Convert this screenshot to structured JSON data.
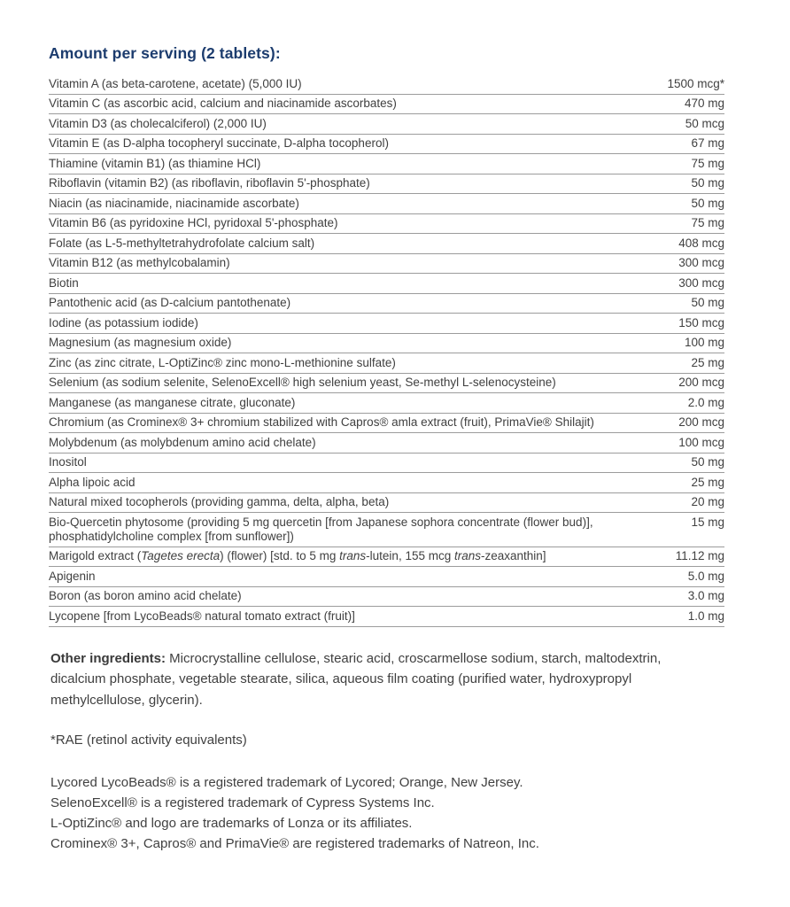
{
  "page": {
    "title": "Amount per serving (2 tablets):"
  },
  "colors": {
    "title_blue": "#1c3c6e",
    "body_text": "#404040",
    "rule_gray": "#9c9c9c",
    "background": "#ffffff"
  },
  "supplement_table": {
    "columns": [
      "ingredient",
      "amount"
    ],
    "rows": [
      {
        "name": "Vitamin A (as beta-carotene, acetate) (5,000 IU)",
        "amount": "1500 mcg*"
      },
      {
        "name": "Vitamin C (as ascorbic acid, calcium and niacinamide ascorbates)",
        "amount": "470 mg"
      },
      {
        "name": "Vitamin D3 (as cholecalciferol) (2,000 IU)",
        "amount": "50 mcg"
      },
      {
        "name": "Vitamin E (as D-alpha tocopheryl succinate, D-alpha tocopherol)",
        "amount": "67 mg"
      },
      {
        "name": "Thiamine (vitamin B1) (as thiamine HCl)",
        "amount": "75 mg"
      },
      {
        "name": "Riboflavin (vitamin B2) (as riboflavin, riboflavin 5'-phosphate)",
        "amount": "50 mg"
      },
      {
        "name": "Niacin (as niacinamide, niacinamide ascorbate)",
        "amount": "50 mg"
      },
      {
        "name": "Vitamin B6 (as pyridoxine HCl, pyridoxal 5'-phosphate)",
        "amount": "75 mg"
      },
      {
        "name": "Folate (as L-5-methyltetrahydrofolate calcium salt)",
        "amount": "408 mcg"
      },
      {
        "name": "Vitamin B12 (as methylcobalamin)",
        "amount": "300 mcg"
      },
      {
        "name": "Biotin",
        "amount": "300 mcg"
      },
      {
        "name": "Pantothenic acid (as D-calcium pantothenate)",
        "amount": "50 mg"
      },
      {
        "name": "Iodine (as potassium iodide)",
        "amount": "150 mcg"
      },
      {
        "name": "Magnesium (as magnesium oxide)",
        "amount": "100 mg"
      },
      {
        "name": "Zinc (as zinc citrate, L-OptiZinc® zinc mono-L-methionine sulfate)",
        "amount": "25 mg"
      },
      {
        "name": "Selenium (as sodium selenite, SelenoExcell® high selenium yeast, Se-methyl L-selenocysteine)",
        "amount": "200 mcg"
      },
      {
        "name": "Manganese (as manganese citrate, gluconate)",
        "amount": "2.0 mg"
      },
      {
        "name": "Chromium (as Crominex® 3+ chromium stabilized with Capros® amla extract (fruit), PrimaVie® Shilajit)",
        "amount": "200 mcg"
      },
      {
        "name": "Molybdenum (as molybdenum amino acid chelate)",
        "amount": "100 mcg"
      },
      {
        "name": "Inositol",
        "amount": "50 mg"
      },
      {
        "name": "Alpha lipoic acid",
        "amount": "25 mg"
      },
      {
        "name": "Natural mixed tocopherols (providing gamma, delta, alpha, beta)",
        "amount": "20 mg"
      },
      {
        "name": "Bio-Quercetin phytosome (providing 5 mg quercetin [from Japanese sophora concentrate (flower bud)], phosphatidylcholine complex [from sunflower])",
        "amount": "15 mg"
      },
      {
        "name": "Marigold extract (Tagetes erecta) (flower) [std. to 5 mg trans-lutein, 155 mcg trans-zeaxanthin]",
        "name_parts": [
          {
            "text": "Marigold extract ("
          },
          {
            "text": "Tagetes erecta",
            "italic": true
          },
          {
            "text": ") (flower) [std. to 5 mg "
          },
          {
            "text": "trans",
            "italic": true
          },
          {
            "text": "-lutein, 155 mcg "
          },
          {
            "text": "trans",
            "italic": true
          },
          {
            "text": "-zeaxanthin]"
          }
        ],
        "amount": "11.12 mg"
      },
      {
        "name": "Apigenin",
        "amount": "5.0 mg"
      },
      {
        "name": "Boron (as boron amino acid chelate)",
        "amount": "3.0 mg"
      },
      {
        "name": "Lycopene [from LycoBeads® natural tomato extract (fruit)]",
        "amount": "1.0 mg"
      }
    ]
  },
  "notes": {
    "other_ingredients_label": "Other ingredients:",
    "other_ingredients_text": " Microcrystalline cellulose, stearic acid, croscarmellose sodium, starch, maltodextrin, dicalcium phosphate, vegetable stearate, silica, aqueous film coating (purified water, hydroxypropyl methylcellulose, glycerin).",
    "rae_note": "*RAE (retinol activity equivalents)",
    "trademarks": [
      "Lycored LycoBeads® is a registered trademark of Lycored; Orange, New Jersey.",
      "SelenoExcell® is a registered trademark of Cypress Systems Inc.",
      "L-OptiZinc® and logo are trademarks of Lonza or its affiliates.",
      "Crominex® 3+, Capros® and PrimaVie® are registered trademarks of Natreon, Inc."
    ]
  }
}
